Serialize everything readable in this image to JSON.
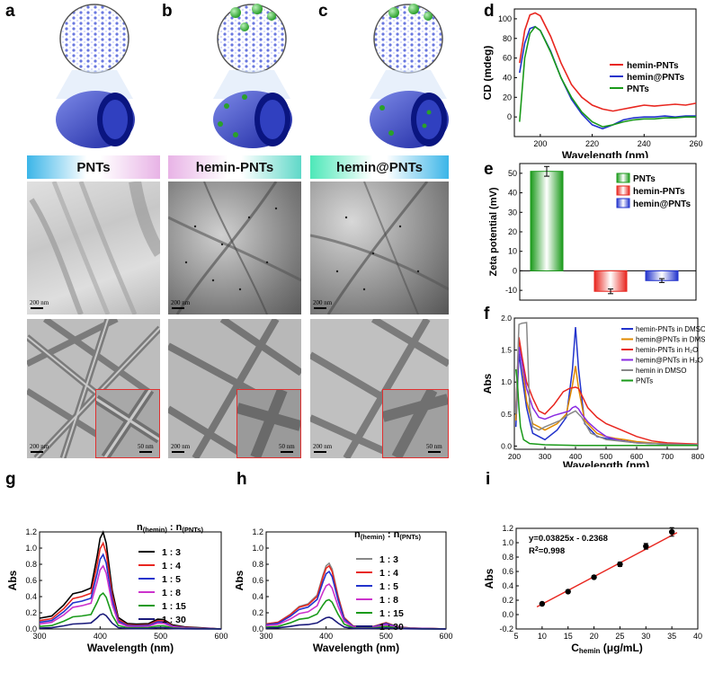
{
  "labels": {
    "a": "a",
    "b": "b",
    "c": "c",
    "d": "d",
    "e": "e",
    "f": "f",
    "g": "g",
    "h": "h",
    "i": "i"
  },
  "headers": {
    "pnts": "PNTs",
    "hemin_pnts": "hemin-PNTs",
    "hemin_at_pnts": "hemin@PNTs"
  },
  "scalebars": {
    "top_a": "200 nm",
    "top_b": "200 nm",
    "top_c": "200 nm",
    "bot_a": "200 nm",
    "bot_b": "200 nm",
    "bot_c": "200 nm",
    "inset_a": "50 nm",
    "inset_b": "50 nm",
    "inset_c": "50 nm"
  },
  "colors": {
    "red": "#e8261f",
    "blue": "#2233cc",
    "green": "#1a9a1a",
    "purple": "#8a2be2",
    "orange": "#e08a00",
    "gray": "#888888",
    "black": "#000000",
    "magenta": "#cc33cc",
    "navy": "#1a1a7a"
  },
  "chart_data": [
    {
      "id": "d",
      "type": "line",
      "xlabel": "Wavelength (nm)",
      "ylabel": "CD (mdeg)",
      "xlim": [
        190,
        260
      ],
      "ylim": [
        -20,
        110
      ],
      "xticks": [
        "200",
        "220",
        "240",
        "260"
      ],
      "yticks": [
        "0",
        "20",
        "40",
        "60",
        "80",
        "100"
      ],
      "series": [
        {
          "name": "hemin-PNTs",
          "color": "#e8261f",
          "x": [
            192,
            194,
            196,
            198,
            200,
            204,
            208,
            212,
            216,
            220,
            224,
            228,
            232,
            236,
            240,
            244,
            248,
            252,
            256,
            260
          ],
          "y": [
            55,
            88,
            104,
            106,
            103,
            82,
            55,
            33,
            20,
            12,
            8,
            6,
            8,
            10,
            12,
            11,
            12,
            13,
            12,
            14
          ]
        },
        {
          "name": "hemin@PNTs",
          "color": "#2233cc",
          "x": [
            192,
            194,
            196,
            198,
            200,
            204,
            208,
            212,
            216,
            220,
            224,
            228,
            232,
            236,
            240,
            244,
            248,
            252,
            256,
            260
          ],
          "y": [
            45,
            75,
            90,
            92,
            88,
            67,
            40,
            18,
            3,
            -8,
            -12,
            -8,
            -3,
            -1,
            0,
            0,
            1,
            0,
            1,
            1
          ]
        },
        {
          "name": "PNTs",
          "color": "#1a9a1a",
          "x": [
            192,
            194,
            196,
            198,
            200,
            204,
            208,
            212,
            216,
            220,
            224,
            228,
            232,
            236,
            240,
            244,
            248,
            252,
            256,
            260
          ],
          "y": [
            -5,
            60,
            85,
            92,
            88,
            66,
            40,
            20,
            5,
            -5,
            -10,
            -8,
            -5,
            -3,
            -2,
            -2,
            -1,
            -1,
            0,
            0
          ]
        }
      ]
    },
    {
      "id": "e",
      "type": "bar",
      "ylabel": "Zeta potential (mV)",
      "ylim": [
        -15,
        55
      ],
      "yticks": [
        "-10",
        "0",
        "10",
        "20",
        "30",
        "40",
        "50"
      ],
      "categories": [
        "PNTs",
        "hemin-PNTs",
        "hemin@PNTs"
      ],
      "values": [
        51,
        -10.5,
        -5
      ],
      "errors": [
        2.5,
        1.2,
        1.0
      ],
      "colors": [
        "#1a9a1a",
        "#e8261f",
        "#2233cc"
      ]
    },
    {
      "id": "f",
      "type": "line",
      "xlabel": "Wavelength (nm)",
      "ylabel": "Abs",
      "xlim": [
        200,
        800
      ],
      "ylim": [
        -0.05,
        2.0
      ],
      "xticks": [
        "200",
        "300",
        "400",
        "500",
        "600",
        "700",
        "800"
      ],
      "yticks": [
        "0.0",
        "0.5",
        "1.0",
        "1.5",
        "2.0"
      ],
      "series": [
        {
          "name": "hemin-PNTs in DMSO",
          "color": "#2233cc",
          "x": [
            205,
            215,
            225,
            240,
            260,
            300,
            340,
            370,
            390,
            400,
            410,
            430,
            470,
            500,
            530,
            560,
            600,
            650,
            700,
            800
          ],
          "y": [
            0.3,
            1.45,
            1.1,
            0.6,
            0.2,
            0.1,
            0.25,
            0.45,
            1.2,
            1.86,
            1.2,
            0.35,
            0.15,
            0.12,
            0.1,
            0.08,
            0.05,
            0.04,
            0.03,
            0.02
          ]
        },
        {
          "name": "hemin@PNTs in DMSO",
          "color": "#e08a00",
          "x": [
            205,
            215,
            225,
            240,
            260,
            300,
            340,
            370,
            390,
            400,
            410,
            430,
            470,
            500,
            530,
            560,
            600,
            650,
            700,
            800
          ],
          "y": [
            0.4,
            1.65,
            1.3,
            0.7,
            0.35,
            0.25,
            0.35,
            0.5,
            0.95,
            1.25,
            0.9,
            0.4,
            0.2,
            0.15,
            0.12,
            0.1,
            0.07,
            0.05,
            0.04,
            0.03
          ]
        },
        {
          "name": "hemin-PNTs in H₂O",
          "color": "#e8261f",
          "x": [
            205,
            215,
            225,
            240,
            260,
            280,
            300,
            330,
            360,
            380,
            400,
            410,
            420,
            440,
            470,
            500,
            550,
            600,
            650,
            700,
            800
          ],
          "y": [
            0.6,
            1.7,
            1.4,
            1.0,
            0.75,
            0.55,
            0.5,
            0.65,
            0.85,
            0.9,
            0.92,
            0.9,
            0.8,
            0.6,
            0.45,
            0.35,
            0.25,
            0.15,
            0.08,
            0.05,
            0.03
          ]
        },
        {
          "name": "hemin@PNTs in H₂O",
          "color": "#8a2be2",
          "x": [
            205,
            215,
            225,
            240,
            260,
            280,
            300,
            330,
            360,
            380,
            390,
            400,
            410,
            420,
            440,
            470,
            500,
            550,
            600,
            700,
            800
          ],
          "y": [
            0.55,
            1.55,
            1.3,
            0.9,
            0.6,
            0.45,
            0.42,
            0.48,
            0.52,
            0.55,
            0.6,
            0.62,
            0.58,
            0.5,
            0.38,
            0.25,
            0.15,
            0.08,
            0.05,
            0.03,
            0.02
          ]
        },
        {
          "name": "hemin in DMSO",
          "color": "#888888",
          "x": [
            205,
            215,
            225,
            240,
            250,
            260,
            280,
            300,
            350,
            380,
            400,
            420,
            450,
            500,
            600,
            700,
            800
          ],
          "y": [
            0.5,
            1.9,
            1.92,
            1.93,
            0.6,
            0.3,
            0.25,
            0.3,
            0.4,
            0.5,
            0.55,
            0.45,
            0.2,
            0.1,
            0.05,
            0.03,
            0.02
          ]
        },
        {
          "name": "PNTs",
          "color": "#1a9a1a",
          "x": [
            205,
            210,
            215,
            220,
            230,
            250,
            300,
            400,
            500,
            600,
            700,
            800
          ],
          "y": [
            1.2,
            1.0,
            0.6,
            0.3,
            0.1,
            0.04,
            0.02,
            0.01,
            0.01,
            0.01,
            0.01,
            0.01
          ]
        }
      ]
    },
    {
      "id": "g",
      "type": "line",
      "xlabel": "Wavelength (nm)",
      "ylabel": "Abs",
      "xlim": [
        300,
        600
      ],
      "ylim": [
        0,
        1.2
      ],
      "xticks": [
        "300",
        "400",
        "500",
        "600"
      ],
      "yticks": [
        "0.0",
        "0.2",
        "0.4",
        "0.6",
        "0.8",
        "1.0",
        "1.2"
      ],
      "legend_title": "n(hemin) : n(PNTs)",
      "legend_title_main": "n",
      "legend_title_sub1": "(hemin)",
      "legend_title_mid": " : n",
      "legend_title_sub2": "(PNTs)",
      "x": [
        300,
        320,
        340,
        355,
        370,
        385,
        395,
        400,
        405,
        410,
        420,
        430,
        445,
        460,
        480,
        495,
        505,
        520,
        540,
        560,
        580,
        600
      ],
      "series": [
        {
          "name": "1 : 3",
          "color": "#000000",
          "peak": 1.05,
          "base": 0.13
        },
        {
          "name": "1 : 4",
          "color": "#e8261f",
          "peak": 0.94,
          "base": 0.1
        },
        {
          "name": "1 : 5",
          "color": "#2233cc",
          "peak": 0.82,
          "base": 0.08
        },
        {
          "name": "1 : 8",
          "color": "#cc33cc",
          "peak": 0.7,
          "base": 0.06
        },
        {
          "name": "1 : 15",
          "color": "#1a9a1a",
          "peak": 0.4,
          "base": 0.03
        },
        {
          "name": "1 : 30",
          "color": "#1a1a7a",
          "peak": 0.17,
          "base": 0.01
        }
      ]
    },
    {
      "id": "h",
      "type": "line",
      "xlabel": "Wavelength (nm)",
      "ylabel": "Abs",
      "xlim": [
        300,
        600
      ],
      "ylim": [
        0,
        1.2
      ],
      "xticks": [
        "300",
        "400",
        "500",
        "600"
      ],
      "yticks": [
        "0.0",
        "0.2",
        "0.4",
        "0.6",
        "0.8",
        "1.0",
        "1.2"
      ],
      "legend_title_main": "n",
      "legend_title_sub1": "(hemin)",
      "legend_title_mid": " : n",
      "legend_title_sub2": "(PNTs)",
      "x": [
        300,
        320,
        340,
        355,
        370,
        385,
        395,
        400,
        405,
        410,
        420,
        430,
        445,
        460,
        480,
        500,
        520,
        540,
        560,
        580,
        600
      ],
      "series": [
        {
          "name": "1 : 3",
          "color": "#888888",
          "peak": 0.73,
          "base": 0.06
        },
        {
          "name": "1 : 4",
          "color": "#e8261f",
          "peak": 0.7,
          "base": 0.06
        },
        {
          "name": "1 : 5",
          "color": "#2233cc",
          "peak": 0.64,
          "base": 0.05
        },
        {
          "name": "1 : 8",
          "color": "#cc33cc",
          "peak": 0.5,
          "base": 0.04
        },
        {
          "name": "1 : 15",
          "color": "#1a9a1a",
          "peak": 0.33,
          "base": 0.02
        },
        {
          "name": "1 : 30",
          "color": "#1a1a7a",
          "peak": 0.13,
          "base": 0.01
        }
      ]
    },
    {
      "id": "i",
      "type": "scatter",
      "xlabel_main": "C",
      "xlabel_sub": "hemin",
      "xlabel_unit": " (μg/mL)",
      "ylabel": "Abs",
      "xlim": [
        5,
        40
      ],
      "ylim": [
        -0.2,
        1.2
      ],
      "xticks": [
        "5",
        "10",
        "15",
        "20",
        "25",
        "30",
        "35",
        "40"
      ],
      "yticks": [
        "-0.2",
        "0.0",
        "0.2",
        "0.4",
        "0.6",
        "0.8",
        "1.0",
        "1.2"
      ],
      "x": [
        10,
        15,
        20,
        25,
        30,
        35
      ],
      "y": [
        0.15,
        0.32,
        0.52,
        0.7,
        0.95,
        1.15
      ],
      "errors": [
        0.01,
        0.01,
        0.02,
        0.03,
        0.04,
        0.06
      ],
      "fit": {
        "slope": 0.03825,
        "intercept": -0.2368,
        "from": 9,
        "to": 36
      },
      "equation": "y=0.03825x - 0.2368",
      "r2_main": "R",
      "r2_sup": "2",
      "r2_val": "=0.998"
    }
  ]
}
